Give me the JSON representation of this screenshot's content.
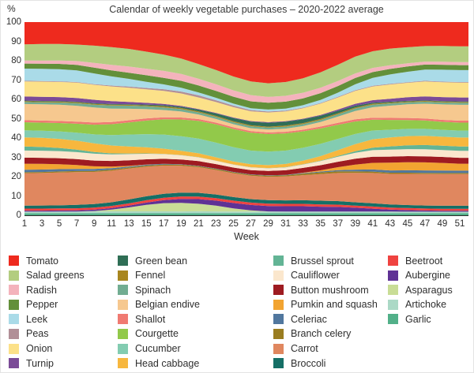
{
  "title": "Calendar of weekly vegetable purchases – 2020-2022 average",
  "y_axis": {
    "unit_label": "%",
    "ticks": [
      100,
      90,
      80,
      70,
      60,
      50,
      40,
      30,
      20,
      10,
      0
    ]
  },
  "x_axis": {
    "label": "Week",
    "ticks": [
      1,
      3,
      5,
      7,
      9,
      11,
      13,
      15,
      17,
      19,
      21,
      23,
      25,
      27,
      29,
      31,
      33,
      35,
      37,
      39,
      41,
      43,
      45,
      47,
      49,
      51
    ]
  },
  "chart_data": {
    "type": "area",
    "stacked": true,
    "normalized": true,
    "ylim": [
      0,
      100
    ],
    "x_domain": [
      1,
      52
    ],
    "grid": false,
    "legend_position": "bottom",
    "x": [
      1,
      3,
      5,
      7,
      9,
      11,
      13,
      15,
      17,
      19,
      21,
      23,
      25,
      27,
      29,
      31,
      33,
      35,
      37,
      39,
      41,
      43,
      45,
      47,
      49,
      51
    ],
    "series": [
      {
        "name": "Tomato",
        "color": "#ee2a1e",
        "values": [
          11,
          10.8,
          10.5,
          10.6,
          11,
          11.5,
          12.2,
          13.5,
          15,
          17,
          20,
          23.5,
          27.5,
          30.5,
          31.5,
          30.5,
          28,
          24.5,
          20.5,
          16.5,
          14,
          13,
          12.5,
          12,
          12,
          12.2
        ]
      },
      {
        "name": "Salad greens",
        "color": "#b3cd80",
        "values": [
          8,
          8.2,
          8,
          7.8,
          8,
          8.2,
          8,
          7.8,
          7.5,
          7.2,
          7,
          7,
          7,
          7,
          7,
          7,
          7.2,
          7.5,
          7.8,
          8,
          8,
          8.2,
          8,
          7.8,
          8,
          8
        ]
      },
      {
        "name": "Radish",
        "color": "#f4b3bc",
        "values": [
          1.5,
          1.5,
          1.6,
          1.8,
          2.2,
          2.5,
          2.8,
          3,
          3.2,
          3.2,
          3.2,
          3.2,
          3.2,
          3.2,
          3,
          3,
          2.8,
          2.6,
          2.4,
          2.2,
          2,
          1.8,
          1.6,
          1.5,
          1.5,
          1.5
        ]
      },
      {
        "name": "Pepper",
        "color": "#63903a",
        "values": [
          2.5,
          2.5,
          2.6,
          2.6,
          2.7,
          2.8,
          2.8,
          3,
          3,
          3.2,
          3.3,
          3.4,
          3.5,
          3.5,
          3.5,
          3.5,
          3.4,
          3.3,
          3.2,
          3,
          2.8,
          2.7,
          2.6,
          2.5,
          2.5,
          2.5
        ]
      },
      {
        "name": "Leek",
        "color": "#aadbe8",
        "values": [
          6,
          6,
          5.8,
          5.5,
          5,
          4.2,
          3.5,
          2.8,
          2.2,
          1.8,
          1.4,
          1.2,
          1,
          1,
          1,
          1,
          1.2,
          1.5,
          2,
          2.8,
          3.8,
          4.6,
          5.2,
          5.6,
          6,
          6
        ]
      },
      {
        "name": "Peas",
        "color": "#b18f97",
        "values": [
          0.3,
          0.3,
          0.3,
          0.3,
          0.3,
          0.4,
          0.5,
          0.6,
          0.8,
          0.9,
          1,
          0.9,
          0.8,
          0.6,
          0.5,
          0.4,
          0.3,
          0.3,
          0.3,
          0.3,
          0.3,
          0.3,
          0.3,
          0.3,
          0.3,
          0.3
        ]
      },
      {
        "name": "Onion",
        "color": "#fce189",
        "values": [
          7.5,
          7.5,
          7.3,
          7.2,
          7,
          6.8,
          6.5,
          6.2,
          6,
          5.8,
          5.5,
          5.3,
          5.2,
          5,
          5,
          5,
          5.2,
          5.5,
          5.8,
          6.2,
          6.6,
          7,
          7.2,
          7.5,
          7.5,
          7.5
        ]
      },
      {
        "name": "Turnip",
        "color": "#7b4b97",
        "values": [
          2,
          2,
          1.9,
          1.8,
          1.6,
          1.3,
          1,
          0.8,
          0.6,
          0.4,
          0.3,
          0.3,
          0.3,
          0.3,
          0.3,
          0.3,
          0.3,
          0.4,
          0.6,
          0.9,
          1.2,
          1.5,
          1.8,
          2,
          2,
          2
        ]
      },
      {
        "name": "Green bean",
        "color": "#2f6e55",
        "values": [
          0.3,
          0.3,
          0.3,
          0.3,
          0.3,
          0.3,
          0.3,
          0.4,
          0.5,
          0.6,
          0.8,
          1.2,
          1.6,
          1.9,
          2,
          2,
          1.9,
          1.6,
          1.2,
          0.8,
          0.5,
          0.4,
          0.3,
          0.3,
          0.3,
          0.3
        ]
      },
      {
        "name": "Fennel",
        "color": "#a8861f",
        "values": [
          0.4,
          0.4,
          0.4,
          0.4,
          0.4,
          0.4,
          0.4,
          0.4,
          0.5,
          0.5,
          0.5,
          0.5,
          0.5,
          0.5,
          0.5,
          0.5,
          0.5,
          0.5,
          0.5,
          0.5,
          0.5,
          0.4,
          0.4,
          0.4,
          0.4,
          0.4
        ]
      },
      {
        "name": "Spinach",
        "color": "#72ad92",
        "values": [
          1,
          1,
          1.1,
          1.2,
          1.3,
          1.4,
          1.4,
          1.3,
          1.2,
          1.1,
          1,
          1,
          1,
          1,
          1,
          1,
          1,
          1,
          1.1,
          1.2,
          1.2,
          1.1,
          1,
          1,
          1,
          1
        ]
      },
      {
        "name": "Belgian endive",
        "color": "#f6c88f",
        "values": [
          8,
          8,
          7.8,
          7.5,
          7,
          6.2,
          5.2,
          4.2,
          3.4,
          2.8,
          2.2,
          1.8,
          1.6,
          1.5,
          1.5,
          1.6,
          1.8,
          2.2,
          3,
          4,
          5,
          6,
          6.8,
          7.4,
          7.8,
          8
        ]
      },
      {
        "name": "Shallot",
        "color": "#f07a72",
        "values": [
          1,
          1,
          1,
          1,
          1,
          1,
          1,
          1,
          0.9,
          0.9,
          0.8,
          0.8,
          0.8,
          0.8,
          0.8,
          0.8,
          0.8,
          0.9,
          0.9,
          1,
          1,
          1,
          1,
          1,
          1,
          1
        ]
      },
      {
        "name": "Courgette",
        "color": "#92c94a",
        "values": [
          4,
          4,
          4,
          4.2,
          4.5,
          5,
          5.5,
          6.2,
          7,
          7.8,
          8.5,
          9,
          9.2,
          9.2,
          9,
          8.8,
          8.2,
          7.5,
          6.8,
          6,
          5.2,
          4.8,
          4.4,
          4.2,
          4,
          4
        ]
      },
      {
        "name": "Cucumber",
        "color": "#83ccb1",
        "values": [
          3.5,
          3.5,
          3.6,
          3.8,
          4.2,
          4.8,
          5.4,
          6,
          6.5,
          6.8,
          7,
          7.2,
          7.2,
          7,
          7,
          6.8,
          6.4,
          6,
          5.4,
          4.8,
          4.2,
          3.8,
          3.6,
          3.5,
          3.5,
          3.5
        ]
      },
      {
        "name": "Head cabbage",
        "color": "#f7b73e",
        "values": [
          4.5,
          4.5,
          4.4,
          4.2,
          4,
          3.6,
          3.2,
          2.8,
          2.4,
          2,
          1.8,
          1.6,
          1.5,
          1.5,
          1.5,
          1.6,
          1.8,
          2.2,
          2.8,
          3.4,
          4,
          4.4,
          4.6,
          4.6,
          4.5,
          4.5
        ]
      },
      {
        "name": "Brussel sprout",
        "color": "#63b495",
        "values": [
          2,
          1.8,
          1.5,
          1.2,
          0.8,
          0.5,
          0.3,
          0.2,
          0.1,
          0.1,
          0.1,
          0.1,
          0.1,
          0.1,
          0.1,
          0.1,
          0.1,
          0.2,
          0.4,
          0.8,
          1.2,
          1.6,
          1.9,
          2.1,
          2.2,
          2.2
        ]
      },
      {
        "name": "Cauliflower",
        "color": "#fbe7cd",
        "values": [
          3.5,
          3.5,
          3.4,
          3.3,
          3.2,
          3,
          2.8,
          2.5,
          2.2,
          2,
          1.8,
          1.6,
          1.5,
          1.4,
          1.4,
          1.5,
          1.7,
          2,
          2.4,
          2.8,
          3.2,
          3.4,
          3.5,
          3.6,
          3.5,
          3.5
        ]
      },
      {
        "name": "Button mushroom",
        "color": "#9e1b21",
        "values": [
          3,
          3,
          2.9,
          2.8,
          2.7,
          2.6,
          2.5,
          2.4,
          2.3,
          2.2,
          2.2,
          2.2,
          2.2,
          2.2,
          2.2,
          2.3,
          2.4,
          2.5,
          2.6,
          2.8,
          2.9,
          3,
          3,
          3,
          3,
          3
        ]
      },
      {
        "name": "Pumkin and squash",
        "color": "#f2a431",
        "values": [
          3,
          2.8,
          2.4,
          1.8,
          1.2,
          0.7,
          0.3,
          0.1,
          0,
          0,
          0,
          0,
          0,
          0,
          0,
          0,
          0.2,
          0.6,
          1.4,
          2.4,
          3.2,
          3.8,
          4,
          4,
          3.8,
          3.5
        ]
      },
      {
        "name": "Celeriac",
        "color": "#51779e",
        "values": [
          1.2,
          1.2,
          1.1,
          1,
          0.9,
          0.7,
          0.5,
          0.4,
          0.3,
          0.2,
          0.2,
          0.2,
          0.2,
          0.2,
          0.2,
          0.2,
          0.3,
          0.4,
          0.6,
          0.8,
          1,
          1.1,
          1.2,
          1.3,
          1.3,
          1.2
        ]
      },
      {
        "name": "Branch celery",
        "color": "#9a7d20",
        "values": [
          0.5,
          0.5,
          0.5,
          0.5,
          0.5,
          0.5,
          0.5,
          0.5,
          0.5,
          0.5,
          0.5,
          0.5,
          0.5,
          0.5,
          0.6,
          0.6,
          0.7,
          0.8,
          0.8,
          0.8,
          0.7,
          0.6,
          0.6,
          0.5,
          0.5,
          0.5
        ]
      },
      {
        "name": "Carrot",
        "color": "#e0875f",
        "values": [
          16,
          16,
          15.8,
          15.5,
          15,
          14.5,
          14,
          13.5,
          13,
          12.5,
          12.2,
          12,
          12,
          12,
          12,
          12.2,
          12.5,
          13,
          13.5,
          14,
          14.5,
          15,
          15.5,
          15.8,
          16,
          16
        ]
      },
      {
        "name": "Broccoli",
        "color": "#156f66",
        "values": [
          1.5,
          1.5,
          1.5,
          1.6,
          1.6,
          1.7,
          1.8,
          1.8,
          1.8,
          1.8,
          1.8,
          1.8,
          1.8,
          1.8,
          1.8,
          1.8,
          1.8,
          1.8,
          1.7,
          1.6,
          1.6,
          1.5,
          1.5,
          1.5,
          1.5,
          1.5
        ]
      },
      {
        "name": "Beetroot",
        "color": "#ef4340",
        "values": [
          1,
          1,
          1,
          1,
          1,
          1,
          1,
          1.1,
          1.1,
          1.2,
          1.2,
          1.2,
          1.2,
          1.2,
          1.2,
          1.2,
          1.2,
          1.1,
          1.1,
          1,
          1,
          1,
          1,
          1,
          1,
          1
        ]
      },
      {
        "name": "Aubergine",
        "color": "#5f3295",
        "values": [
          0.5,
          0.5,
          0.5,
          0.5,
          0.6,
          0.7,
          0.8,
          1,
          1.4,
          1.8,
          2.2,
          2.5,
          2.7,
          2.8,
          2.8,
          2.7,
          2.6,
          2.4,
          2.2,
          1.8,
          1.4,
          1,
          0.8,
          0.6,
          0.5,
          0.5
        ]
      },
      {
        "name": "Asparagus",
        "color": "#c9dd96",
        "values": [
          0,
          0,
          0,
          0,
          0.2,
          0.8,
          1.8,
          3,
          3.8,
          4,
          3.6,
          2.8,
          1.6,
          0.6,
          0.1,
          0,
          0,
          0,
          0,
          0,
          0,
          0,
          0,
          0,
          0,
          0
        ]
      },
      {
        "name": "Artichoke",
        "color": "#abd9c6",
        "values": [
          0.8,
          0.8,
          0.8,
          0.8,
          0.8,
          0.8,
          0.8,
          0.8,
          0.8,
          0.8,
          0.9,
          0.9,
          0.9,
          0.9,
          0.9,
          0.9,
          0.9,
          0.8,
          0.8,
          0.8,
          0.8,
          0.8,
          0.8,
          0.8,
          0.8,
          0.8
        ]
      },
      {
        "name": "Garlic",
        "color": "#52b089",
        "values": [
          1,
          1,
          1,
          1,
          1,
          1,
          1,
          1,
          1,
          1,
          1,
          1,
          1,
          1,
          1,
          1,
          1,
          1,
          1,
          1,
          1,
          1,
          1,
          1,
          1,
          1
        ]
      }
    ]
  },
  "legend": {
    "columns": [
      [
        "Tomato",
        "Salad greens",
        "Radish",
        "Pepper",
        "Leek",
        "Peas",
        "Onion",
        "Turnip"
      ],
      [
        "Green bean",
        "Fennel",
        "Spinach",
        "Belgian endive",
        "Shallot",
        "Courgette",
        "Cucumber",
        "Head cabbage"
      ],
      [
        "Brussel sprout",
        "Cauliflower",
        "Button mushroom",
        "Pumkin and squash",
        "Celeriac",
        "Branch celery",
        "Carrot",
        "Broccoli"
      ],
      [
        "Beetroot",
        "Aubergine",
        "Asparagus",
        "Artichoke",
        "Garlic"
      ]
    ]
  }
}
